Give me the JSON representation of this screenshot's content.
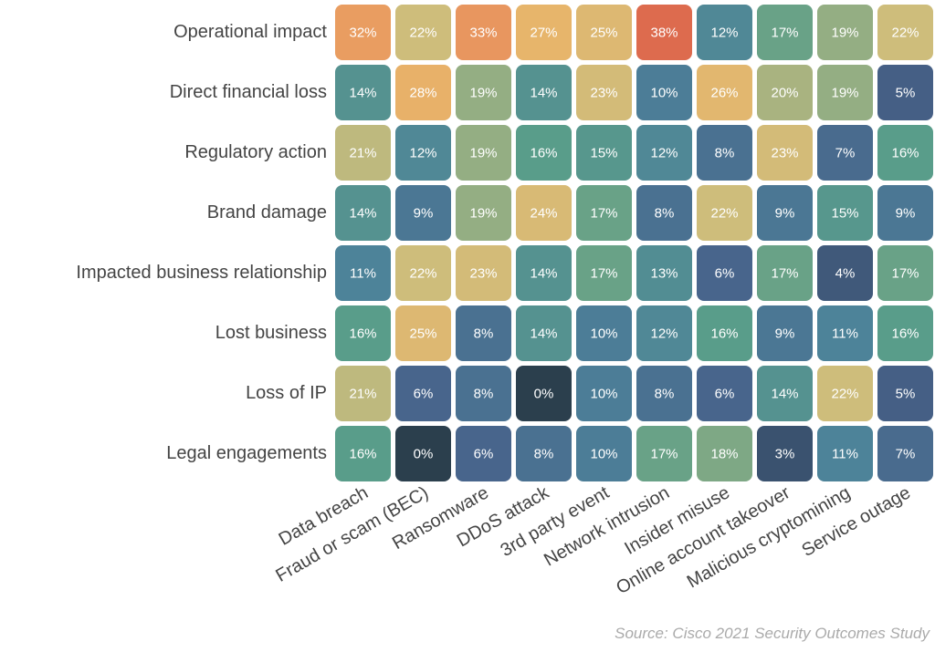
{
  "chart_data": {
    "type": "heatmap",
    "y_categories": [
      "Operational impact",
      "Direct financial loss",
      "Regulatory action",
      "Brand damage",
      "Impacted business relationship",
      "Lost business",
      "Loss of IP",
      "Legal engagements"
    ],
    "x_categories": [
      "Data breach",
      "Fraud or scam (BEC)",
      "Ransomware",
      "DDoS attack",
      "3rd party event",
      "Network intrusion",
      "Insider misuse",
      "Online account takeover",
      "Malicious cryptomining",
      "Service outage"
    ],
    "values": [
      [
        32,
        22,
        33,
        27,
        25,
        38,
        12,
        17,
        19,
        22
      ],
      [
        14,
        28,
        19,
        14,
        23,
        10,
        26,
        20,
        19,
        5
      ],
      [
        21,
        12,
        19,
        16,
        15,
        12,
        8,
        23,
        7,
        16
      ],
      [
        14,
        9,
        19,
        24,
        17,
        8,
        22,
        9,
        15,
        9
      ],
      [
        11,
        22,
        23,
        14,
        17,
        13,
        6,
        17,
        4,
        17
      ],
      [
        16,
        25,
        8,
        14,
        10,
        12,
        16,
        9,
        11,
        16
      ],
      [
        21,
        6,
        8,
        0,
        10,
        8,
        6,
        14,
        22,
        5
      ],
      [
        16,
        0,
        6,
        8,
        10,
        17,
        18,
        3,
        11,
        7
      ]
    ],
    "value_labels": [
      [
        "32%",
        "22%",
        "33%",
        "27%",
        "25%",
        "38%",
        "12%",
        "17%",
        "19%",
        "22%"
      ],
      [
        "14%",
        "28%",
        "19%",
        "14%",
        "23%",
        "10%",
        "26%",
        "20%",
        "19%",
        "5%"
      ],
      [
        "21%",
        "12%",
        "19%",
        "16%",
        "15%",
        "12%",
        "8%",
        "23%",
        "7%",
        "16%"
      ],
      [
        "14%",
        "9%",
        "19%",
        "24%",
        "17%",
        "8%",
        "22%",
        "9%",
        "15%",
        "9%"
      ],
      [
        "11%",
        "22%",
        "23%",
        "14%",
        "17%",
        "13%",
        "6%",
        "17%",
        "4%",
        "17%"
      ],
      [
        "16%",
        "25%",
        "8%",
        "14%",
        "10%",
        "12%",
        "16%",
        "9%",
        "11%",
        "16%"
      ],
      [
        "21%",
        "6%",
        "8%",
        "0%",
        "10%",
        "8%",
        "6%",
        "14%",
        "22%",
        "5%"
      ],
      [
        "16%",
        "0%",
        "6%",
        "8%",
        "10%",
        "17%",
        "18%",
        "3%",
        "11%",
        "7%"
      ]
    ],
    "colorscale": [
      "#2b3f4d",
      "#47628a",
      "#4d8299",
      "#5a9e89",
      "#cdbd7c",
      "#e8b56b",
      "#e99a60",
      "#dd6b4e"
    ],
    "source": "Source: Cisco 2021 Security Outcomes Study"
  }
}
